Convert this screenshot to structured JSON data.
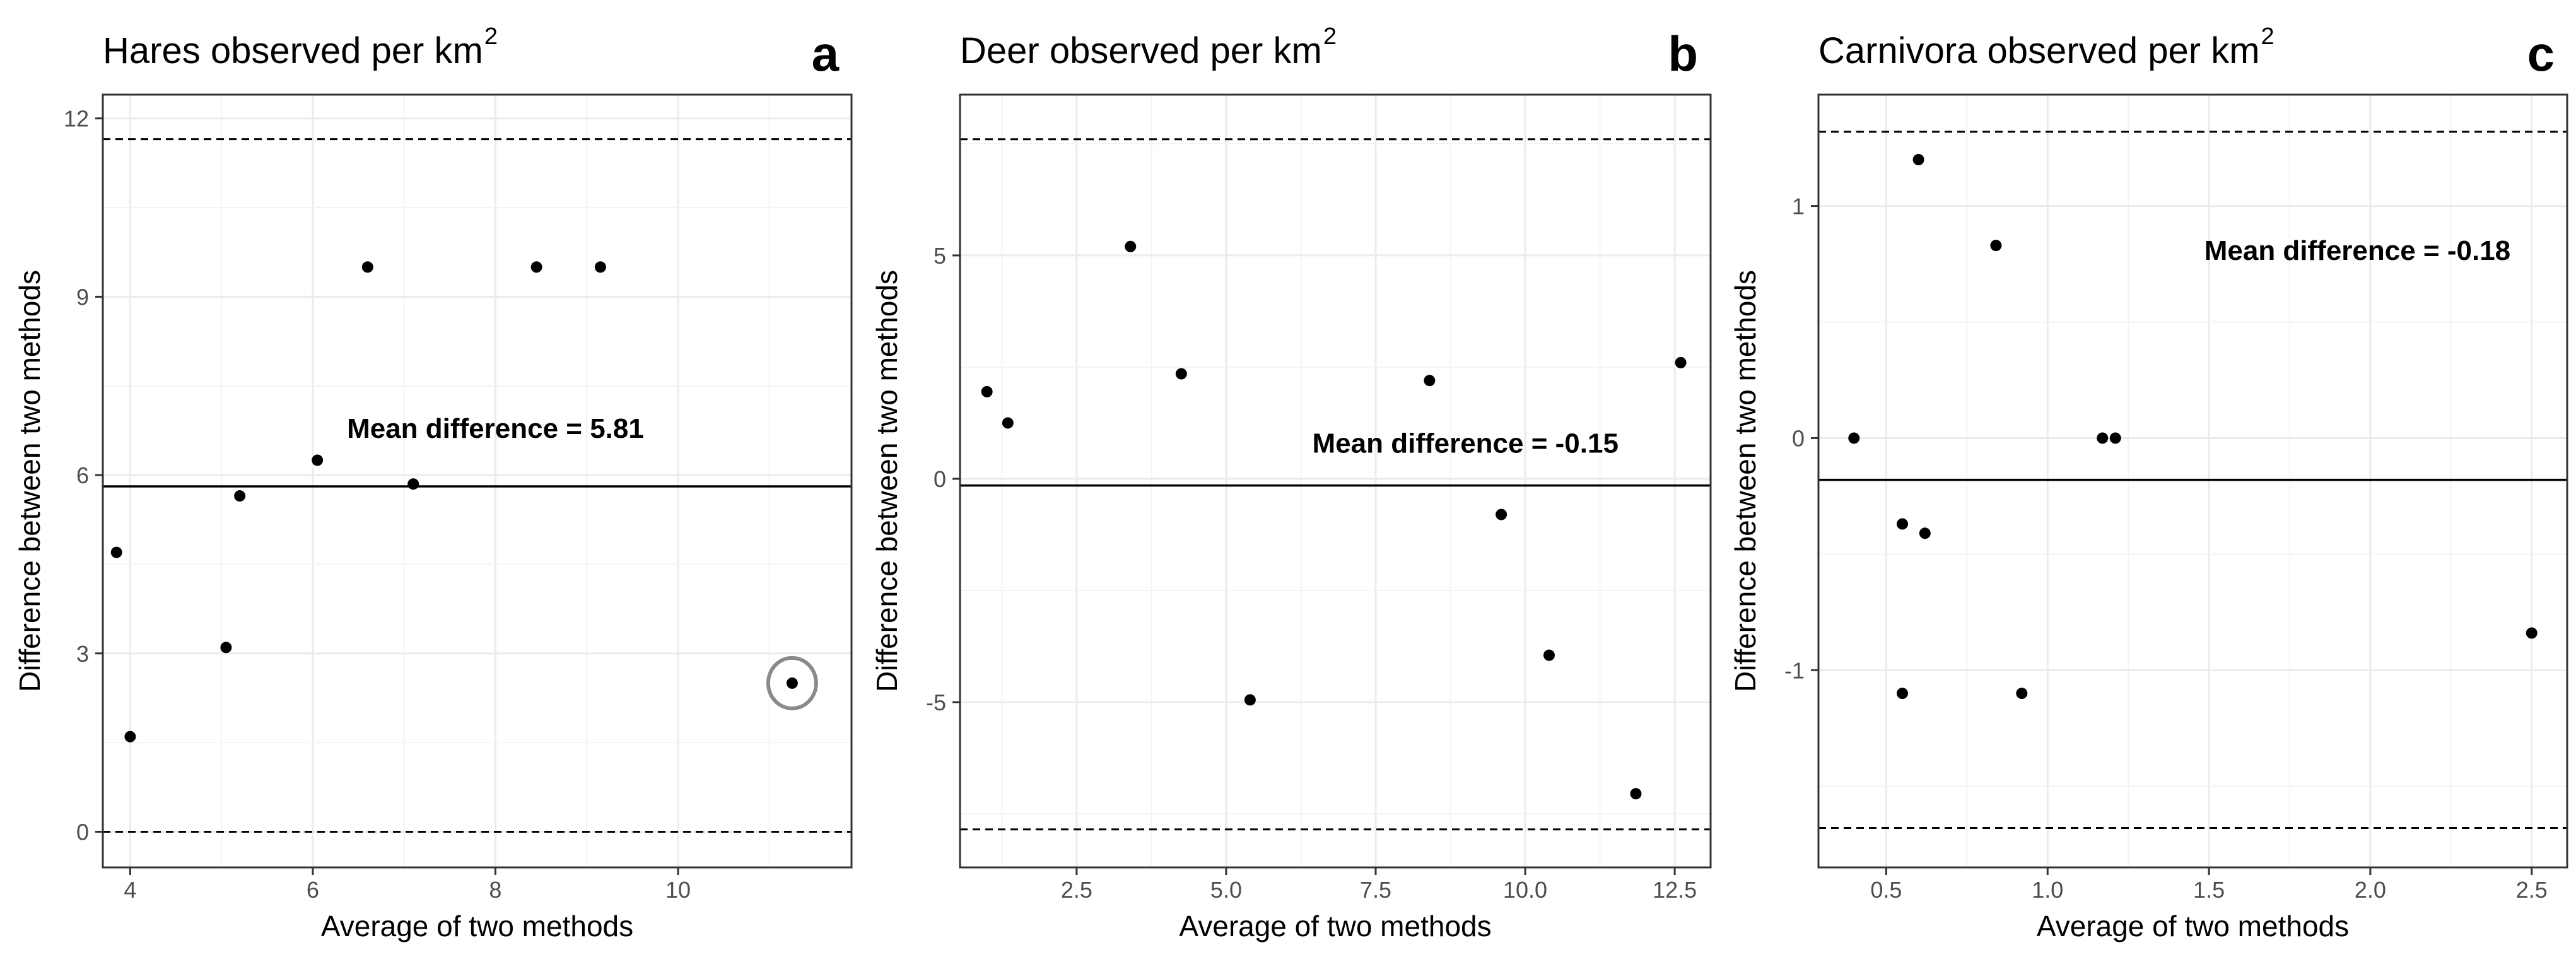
{
  "chart_data": [
    {
      "type": "scatter",
      "panel": "a",
      "title": "Hares observed per km",
      "title_sup": "2",
      "xlabel": "Average of two methods",
      "ylabel": "Difference between two methods",
      "xlim": [
        3.7,
        11.9
      ],
      "ylim": [
        -0.6,
        12.4
      ],
      "xticks": [
        4,
        6,
        8,
        10
      ],
      "yticks": [
        0,
        3,
        6,
        9,
        12
      ],
      "x": [
        3.85,
        4.0,
        5.05,
        5.2,
        6.05,
        6.6,
        7.1,
        8.45,
        9.15,
        11.25
      ],
      "y": [
        4.7,
        1.6,
        3.1,
        5.65,
        6.25,
        9.5,
        5.85,
        9.5,
        9.5,
        2.5
      ],
      "mean_difference": 5.81,
      "upper_limit": 11.65,
      "lower_limit": 0.0,
      "mean_label": "Mean difference = 5.81",
      "mean_label_at": [
        8.0,
        6.75
      ],
      "highlighted_point_index": 9
    },
    {
      "type": "scatter",
      "panel": "b",
      "title": "Deer observed per km",
      "title_sup": "2",
      "xlabel": "Average of two methods",
      "ylabel": "Difference between two methods",
      "xlim": [
        0.55,
        13.1
      ],
      "ylim": [
        -8.7,
        8.6
      ],
      "xticks": [
        2.5,
        5.0,
        7.5,
        10.0,
        12.5
      ],
      "xtick_labels": [
        "2.5",
        "5.0",
        "7.5",
        "10.0",
        "12.5"
      ],
      "yticks": [
        -5,
        0,
        5
      ],
      "x": [
        1.0,
        1.35,
        3.4,
        4.25,
        5.4,
        8.4,
        9.6,
        10.4,
        11.85,
        12.6
      ],
      "y": [
        1.95,
        1.25,
        5.2,
        2.35,
        -4.95,
        2.2,
        -0.8,
        -3.95,
        -7.05,
        2.6
      ],
      "mean_difference": -0.15,
      "upper_limit": 7.6,
      "lower_limit": -7.85,
      "mean_label": "Mean difference = -0.15",
      "mean_label_at": [
        9.0,
        0.75
      ]
    },
    {
      "type": "scatter",
      "panel": "c",
      "title": "Carnivora observed per km",
      "title_sup": "2",
      "xlabel": "Average of two methods",
      "ylabel": "Difference between two methods",
      "xlim": [
        0.29,
        2.61
      ],
      "ylim": [
        -1.85,
        1.48
      ],
      "xticks": [
        0.5,
        1.0,
        1.5,
        2.0,
        2.5
      ],
      "xtick_labels": [
        "0.5",
        "1.0",
        "1.5",
        "2.0",
        "2.5"
      ],
      "yticks": [
        -1,
        0,
        1
      ],
      "x": [
        0.4,
        0.55,
        0.55,
        0.6,
        0.62,
        0.84,
        0.92,
        1.17,
        1.21,
        2.5
      ],
      "y": [
        0.0,
        -0.37,
        -1.1,
        1.2,
        -0.41,
        0.83,
        -1.1,
        0.0,
        0.0,
        -0.84
      ],
      "mean_difference": -0.18,
      "upper_limit": 1.32,
      "lower_limit": -1.68,
      "mean_label": "Mean difference = -0.18",
      "mean_label_at": [
        1.96,
        0.8
      ]
    }
  ]
}
